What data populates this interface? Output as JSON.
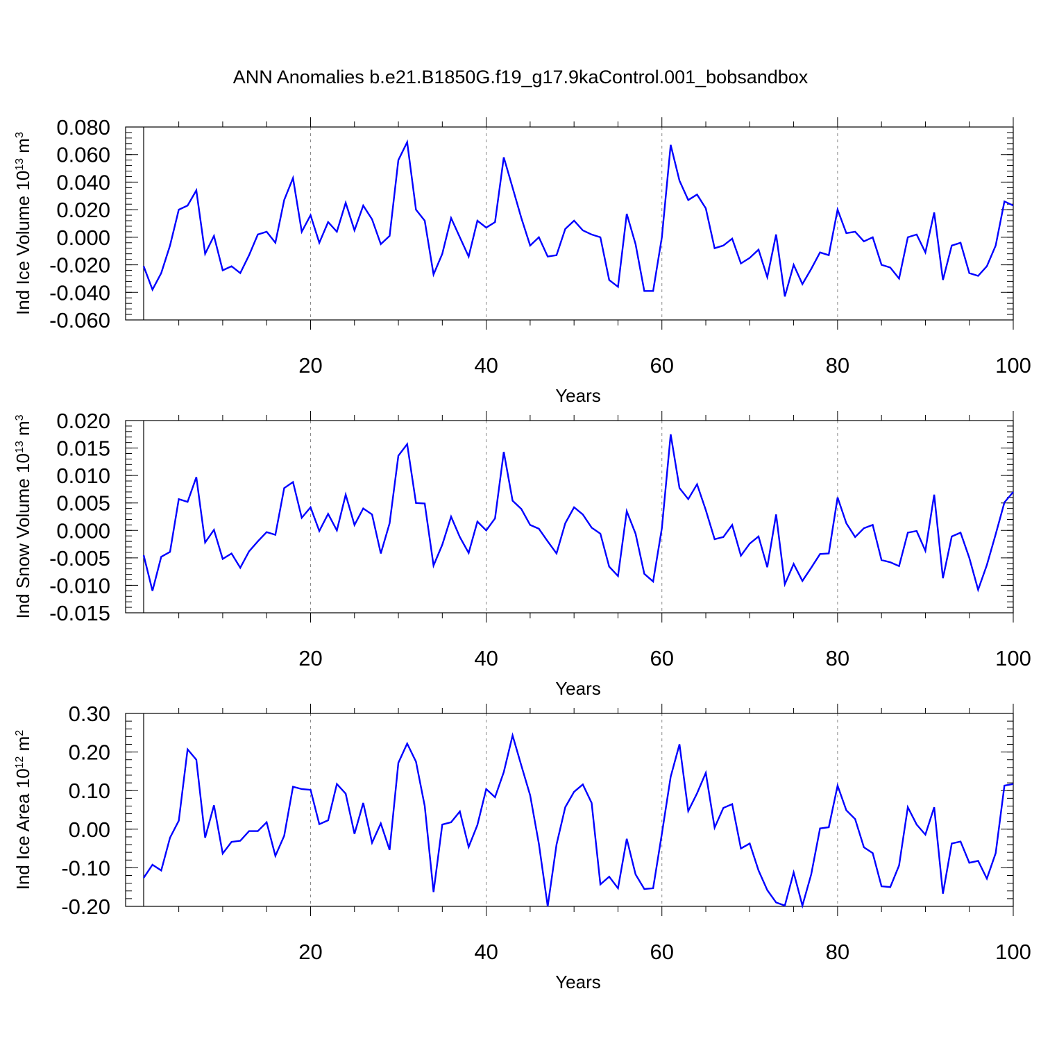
{
  "title": "ANN Anomalies b.e21.B1850G.f19_g17.9kaControl.001_bobsandbox",
  "colors": {
    "line": "#0000ff",
    "axis": "#000000",
    "grid": "#888888"
  },
  "chart_data": [
    {
      "type": "line",
      "ylabel_text": "Ind Ice Volume 10",
      "ylabel_exp": "13",
      "ylabel_unit": " m",
      "ylabel_unit_exp": "3",
      "xlabel": "Years",
      "xlim": [
        1,
        100
      ],
      "ylim": [
        -0.06,
        0.08
      ],
      "xticks": [
        20,
        40,
        60,
        80,
        100
      ],
      "yticks": [
        -0.06,
        -0.04,
        -0.02,
        0.0,
        0.02,
        0.04,
        0.06,
        0.08
      ],
      "ytick_labels": [
        "-0.060",
        "-0.040",
        "-0.020",
        "0.000",
        "0.020",
        "0.040",
        "0.060",
        "0.080"
      ],
      "ytick_minor_step": 0.004,
      "grid_x": "dashed vertical lines at major x ticks",
      "series": [
        {
          "values": [
            -0.021,
            -0.038,
            -0.026,
            -0.006,
            0.02,
            0.023,
            0.034,
            -0.012,
            0.001,
            -0.024,
            -0.021,
            -0.026,
            -0.013,
            0.002,
            0.004,
            -0.004,
            0.027,
            0.043,
            0.004,
            0.016,
            -0.004,
            0.011,
            0.004,
            0.025,
            0.005,
            0.023,
            0.013,
            -0.005,
            0.001,
            0.056,
            0.069,
            0.02,
            0.012,
            -0.027,
            -0.012,
            0.014,
            0.0,
            -0.014,
            0.012,
            0.007,
            0.011,
            0.058,
            0.036,
            0.014,
            -0.006,
            0.0,
            -0.014,
            -0.013,
            0.006,
            0.012,
            0.005,
            0.002,
            0.0,
            -0.031,
            -0.036,
            0.017,
            -0.005,
            -0.039,
            -0.039,
            0.0,
            0.067,
            0.041,
            0.027,
            0.031,
            0.021,
            -0.008,
            -0.006,
            -0.001,
            -0.019,
            -0.015,
            -0.009,
            -0.029,
            0.002,
            -0.043,
            -0.02,
            -0.034,
            -0.023,
            -0.011,
            -0.013,
            0.02,
            0.003,
            0.004,
            -0.003,
            0.0,
            -0.02,
            -0.022,
            -0.03,
            0.0,
            0.002,
            -0.011,
            0.018,
            -0.031,
            -0.006,
            -0.004,
            -0.026,
            -0.028,
            -0.021,
            -0.006,
            0.026,
            0.023
          ]
        }
      ]
    },
    {
      "type": "line",
      "ylabel_text": "Ind Snow Volume 10",
      "ylabel_exp": "13",
      "ylabel_unit": " m",
      "ylabel_unit_exp": "3",
      "xlabel": "Years",
      "xlim": [
        1,
        100
      ],
      "ylim": [
        -0.015,
        0.02
      ],
      "xticks": [
        20,
        40,
        60,
        80,
        100
      ],
      "yticks": [
        -0.015,
        -0.01,
        -0.005,
        0.0,
        0.005,
        0.01,
        0.015,
        0.02
      ],
      "ytick_labels": [
        "-0.015",
        "-0.010",
        "-0.005",
        "0.000",
        "0.005",
        "0.010",
        "0.015",
        "0.020"
      ],
      "ytick_minor_step": 0.001,
      "grid_x": "dashed vertical lines at major x ticks",
      "series": [
        {
          "values": [
            -0.0045,
            -0.011,
            -0.0048,
            -0.0039,
            0.0057,
            0.0052,
            0.0097,
            -0.0022,
            0.0001,
            -0.0052,
            -0.0042,
            -0.0068,
            -0.0038,
            -0.002,
            -0.0003,
            -0.0008,
            0.0077,
            0.0088,
            0.0023,
            0.0042,
            -0.0001,
            0.003,
            0.0,
            0.0065,
            0.001,
            0.004,
            0.0029,
            -0.0042,
            0.0013,
            0.0136,
            0.0157,
            0.005,
            0.0049,
            -0.0064,
            -0.0026,
            0.0025,
            -0.0012,
            -0.0041,
            0.0016,
            0.0,
            0.0022,
            0.0143,
            0.0054,
            0.0039,
            0.001,
            0.0003,
            -0.002,
            -0.0042,
            0.0013,
            0.0042,
            0.0029,
            0.0005,
            -0.0006,
            -0.0066,
            -0.0083,
            0.0035,
            -0.0006,
            -0.0079,
            -0.0093,
            0.0004,
            0.0175,
            0.0077,
            0.0057,
            0.0084,
            0.0037,
            -0.0016,
            -0.0012,
            0.001,
            -0.0046,
            -0.0024,
            -0.0011,
            -0.0067,
            0.0029,
            -0.0098,
            -0.0061,
            -0.0092,
            -0.0068,
            -0.0043,
            -0.0042,
            0.006,
            0.0013,
            -0.0012,
            0.0004,
            0.001,
            -0.0054,
            -0.0058,
            -0.0065,
            -0.0004,
            -0.0001,
            -0.0037,
            0.0065,
            -0.0087,
            -0.0011,
            -0.0004,
            -0.005,
            -0.0108,
            -0.0063,
            -0.0007,
            0.0051,
            0.007
          ]
        }
      ]
    },
    {
      "type": "line",
      "ylabel_text": "Ind Ice Area 10",
      "ylabel_exp": "12",
      "ylabel_unit": " m",
      "ylabel_unit_exp": "2",
      "xlabel": "Years",
      "xlim": [
        1,
        100
      ],
      "ylim": [
        -0.2,
        0.3
      ],
      "xticks": [
        20,
        40,
        60,
        80,
        100
      ],
      "yticks": [
        -0.2,
        -0.1,
        0.0,
        0.1,
        0.2,
        0.3
      ],
      "ytick_labels": [
        "-0.20",
        "-0.10",
        "0.00",
        "0.10",
        "0.20",
        "0.30"
      ],
      "ytick_minor_step": 0.02,
      "grid_x": "dashed vertical lines at major x ticks",
      "series": [
        {
          "values": [
            -0.126,
            -0.092,
            -0.107,
            -0.022,
            0.022,
            0.207,
            0.18,
            -0.022,
            0.062,
            -0.063,
            -0.033,
            -0.03,
            -0.005,
            -0.005,
            0.018,
            -0.069,
            -0.017,
            0.11,
            0.104,
            0.102,
            0.013,
            0.023,
            0.117,
            0.092,
            -0.012,
            0.068,
            -0.035,
            0.015,
            -0.054,
            0.172,
            0.222,
            0.175,
            0.06,
            -0.163,
            0.012,
            0.018,
            0.046,
            -0.046,
            0.011,
            0.104,
            0.083,
            0.148,
            0.243,
            0.165,
            0.088,
            -0.038,
            -0.2,
            -0.04,
            0.057,
            0.097,
            0.116,
            0.068,
            -0.143,
            -0.123,
            -0.153,
            -0.025,
            -0.117,
            -0.155,
            -0.153,
            -0.012,
            0.136,
            0.22,
            0.047,
            0.093,
            0.146,
            0.004,
            0.055,
            0.065,
            -0.05,
            -0.037,
            -0.107,
            -0.158,
            -0.19,
            -0.198,
            -0.112,
            -0.198,
            -0.117,
            0.002,
            0.005,
            0.113,
            0.049,
            0.026,
            -0.047,
            -0.062,
            -0.148,
            -0.15,
            -0.094,
            0.057,
            0.012,
            -0.014,
            0.057,
            -0.167,
            -0.037,
            -0.032,
            -0.087,
            -0.082,
            -0.128,
            -0.062,
            0.113,
            0.117
          ]
        }
      ]
    }
  ]
}
